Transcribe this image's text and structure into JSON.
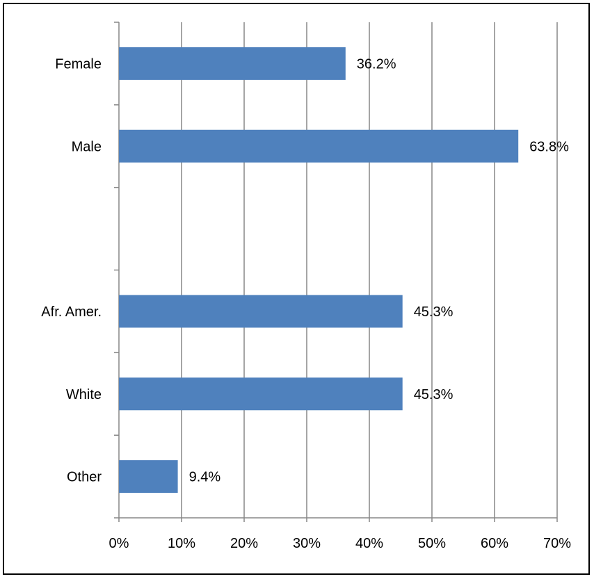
{
  "chart_data": {
    "type": "bar",
    "orientation": "horizontal",
    "title": "",
    "xlabel": "",
    "ylabel": "",
    "categories": [
      "Female",
      "Male",
      "",
      "Afr. Amer.",
      "White",
      "Other"
    ],
    "values": [
      36.2,
      63.8,
      null,
      45.3,
      45.3,
      9.4
    ],
    "data_labels": [
      "36.2%",
      "63.8%",
      "",
      "45.3%",
      "45.3%",
      "9.4%"
    ],
    "xlim": [
      0,
      70
    ],
    "x_ticks": [
      0,
      10,
      20,
      30,
      40,
      50,
      60,
      70
    ],
    "x_tick_labels": [
      "0%",
      "10%",
      "20%",
      "30%",
      "40%",
      "50%",
      "60%",
      "70%"
    ],
    "grid": "vertical-major",
    "legend": "none",
    "bar_color": "#4F81BD",
    "gridline_color": "#878787"
  }
}
